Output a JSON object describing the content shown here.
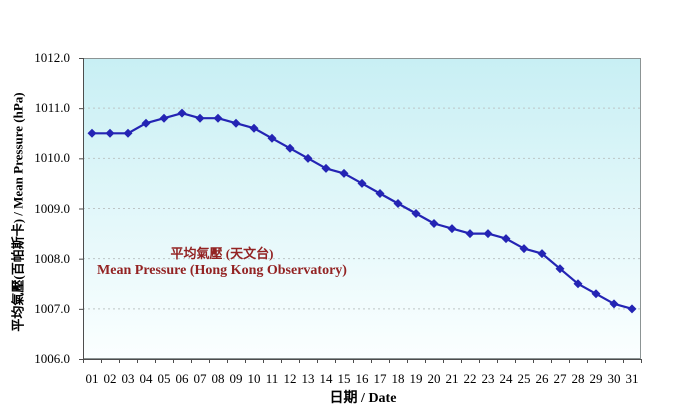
{
  "chart_data": {
    "type": "line",
    "title": "",
    "categories": [
      "01",
      "02",
      "03",
      "04",
      "05",
      "06",
      "07",
      "08",
      "09",
      "10",
      "11",
      "12",
      "13",
      "14",
      "15",
      "16",
      "17",
      "18",
      "19",
      "20",
      "21",
      "22",
      "23",
      "24",
      "25",
      "26",
      "27",
      "28",
      "29",
      "30",
      "31"
    ],
    "series": [
      {
        "name": "平均氣壓 (天文台) / Mean Pressure (Hong Kong Observatory)",
        "values": [
          1010.5,
          1010.5,
          1010.5,
          1010.7,
          1010.8,
          1010.9,
          1010.8,
          1010.8,
          1010.7,
          1010.6,
          1010.4,
          1010.2,
          1010.0,
          1009.8,
          1009.7,
          1009.5,
          1009.3,
          1009.1,
          1008.9,
          1008.7,
          1008.6,
          1008.5,
          1008.5,
          1008.4,
          1008.2,
          1008.1,
          1007.8,
          1007.5,
          1007.3,
          1007.1,
          1007.0
        ]
      }
    ],
    "xlabel": "日期 / Date",
    "ylabel": "平均氣壓(百帕斯卡) / Mean Pressure (hPa)",
    "ylim": [
      1006.0,
      1012.0
    ],
    "ytick_interval": 1.0,
    "ytick_labels": [
      "1012.0",
      "1011.0",
      "1010.0",
      "1009.0",
      "1008.0",
      "1007.0",
      "1006.0"
    ],
    "legend": {
      "line1": "平均氣壓 (天文台)",
      "line2": "Mean Pressure (Hong Kong Observatory)",
      "position": "inside-left-center"
    },
    "grid": "horizontal-dashed",
    "marker": "diamond"
  },
  "colors": {
    "line": "#2424b4",
    "marker": "#2424b4",
    "legend_text": "#932323",
    "plot_bg_top": "#c8efF4",
    "plot_bg_bottom": "#fbffff",
    "gridline": "#bdc6c6",
    "plot_border": "#8c9494",
    "axis": "#4d4d4d",
    "label_text": "#000000"
  }
}
